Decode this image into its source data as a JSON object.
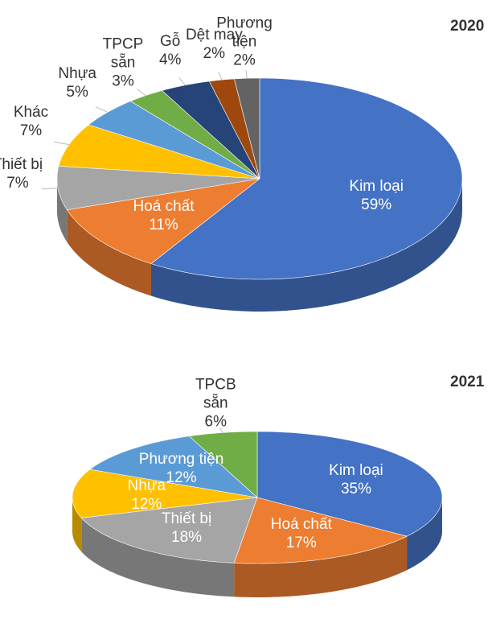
{
  "chart_data": [
    {
      "type": "pie",
      "title": "2020",
      "categories": [
        "Kim loại",
        "Hoá chất",
        "Thiết bị",
        "Khác",
        "Nhựa",
        "TPCP sẵn",
        "Gỗ",
        "Dệt may",
        "Phương tiện"
      ],
      "values": [
        59,
        11,
        7,
        7,
        5,
        3,
        4,
        2,
        2
      ],
      "value_labels": [
        "59%",
        "11%",
        "7%",
        "7%",
        "5%",
        "3%",
        "4%",
        "2%",
        "2%"
      ],
      "colors": [
        "#4472c4",
        "#ed7d31",
        "#a5a5a5",
        "#ffc000",
        "#5b9bd5",
        "#70ad47",
        "#264478",
        "#9e480e",
        "#636363"
      ]
    },
    {
      "type": "pie",
      "title": "2021",
      "categories": [
        "Kim loại",
        "Hoá chất",
        "Thiết bị",
        "Nhựa",
        "Phương tiện",
        "TPCB sẵn"
      ],
      "values": [
        35,
        17,
        18,
        12,
        12,
        6
      ],
      "value_labels": [
        "35%",
        "17%",
        "18%",
        "12%",
        "12%",
        "6%"
      ],
      "colors": [
        "#4472c4",
        "#ed7d31",
        "#a5a5a5",
        "#ffc000",
        "#5b9bd5",
        "#70ad47"
      ]
    }
  ]
}
